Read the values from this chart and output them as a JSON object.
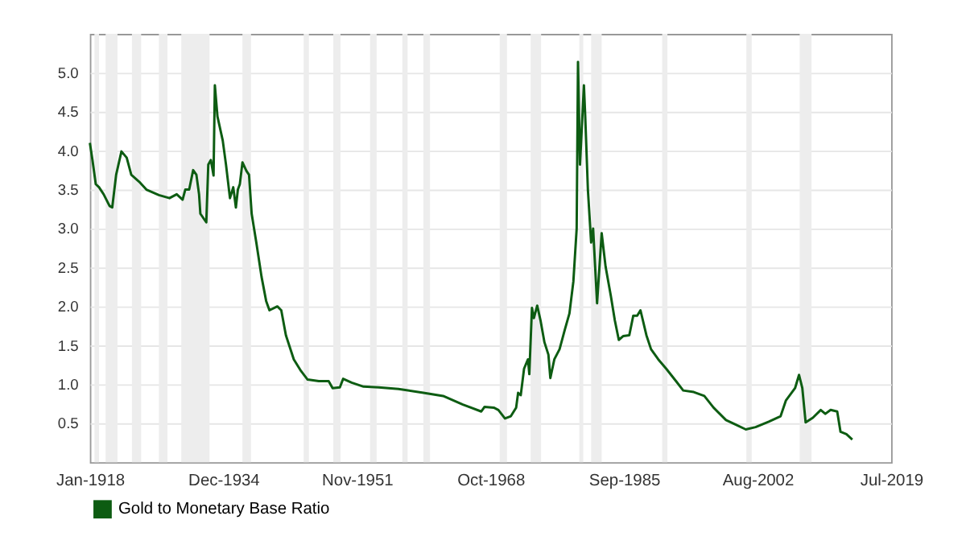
{
  "chart_data": {
    "type": "line",
    "series": [
      {
        "name": "Gold to Monetary Base Ratio",
        "color": "#0d5c12",
        "x": [
          "1918-01",
          "1918-05",
          "1918-10",
          "1919-03",
          "1919-10",
          "1920-07",
          "1920-11",
          "1921-05",
          "1922-01",
          "1922-09",
          "1923-04",
          "1924-04",
          "1925-03",
          "1926-10",
          "1928-02",
          "1929-01",
          "1929-10",
          "1930-02",
          "1930-08",
          "1931-02",
          "1931-07",
          "1931-11",
          "1932-01",
          "1932-10",
          "1933-01",
          "1933-05",
          "1933-09",
          "1933-11",
          "1934-03",
          "1934-11",
          "1935-04",
          "1935-10",
          "1936-03",
          "1936-07",
          "1936-10",
          "1937-01",
          "1937-05",
          "1937-11",
          "1938-03",
          "1938-07",
          "1939-02",
          "1939-10",
          "1940-05",
          "1940-10",
          "1941-10",
          "1942-04",
          "1942-11",
          "1943-11",
          "1944-10",
          "1945-08",
          "1947-01",
          "1948-04",
          "1948-10",
          "1949-09",
          "1950-02",
          "1951-03",
          "1952-09",
          "1954-08",
          "1957-02",
          "1960-04",
          "1962-10",
          "1965-04",
          "1967-08",
          "1968-01",
          "1969-03",
          "1969-10",
          "1970-08",
          "1971-05",
          "1972-01",
          "1972-04",
          "1972-08",
          "1973-01",
          "1973-07",
          "1973-09",
          "1974-01",
          "1974-04",
          "1974-09",
          "1975-02",
          "1975-08",
          "1976-02",
          "1976-05",
          "1976-11",
          "1977-07",
          "1978-03",
          "1978-10",
          "1979-04",
          "1979-09",
          "1979-11",
          "1980-02",
          "1980-08",
          "1980-10",
          "1981-02",
          "1981-07",
          "1981-10",
          "1982-04",
          "1982-11",
          "1983-05",
          "1984-01",
          "1984-07",
          "1985-01",
          "1985-08",
          "1986-05",
          "1986-11",
          "1987-05",
          "1987-10",
          "1988-07",
          "1989-02",
          "1990-01",
          "1991-01",
          "1992-04",
          "1993-03",
          "1994-07",
          "1995-11",
          "1997-01",
          "1998-08",
          "1999-11",
          "2001-02",
          "2002-05",
          "2004-01",
          "2005-07",
          "2006-03",
          "2007-05",
          "2007-11",
          "2008-04",
          "2008-09",
          "2009-08",
          "2010-08",
          "2011-03",
          "2011-11",
          "2012-09",
          "2013-02",
          "2013-11",
          "2014-08"
        ],
        "values": [
          4.1,
          3.88,
          3.57,
          3.53,
          3.44,
          3.29,
          3.27,
          3.69,
          3.99,
          3.91,
          3.69,
          3.6,
          3.5,
          3.43,
          3.39,
          3.44,
          3.37,
          3.5,
          3.5,
          3.75,
          3.69,
          3.44,
          3.19,
          3.08,
          3.82,
          3.88,
          3.68,
          4.84,
          4.44,
          4.13,
          3.82,
          3.39,
          3.53,
          3.27,
          3.5,
          3.57,
          3.85,
          3.74,
          3.69,
          3.19,
          2.82,
          2.38,
          2.07,
          1.95,
          2.0,
          1.95,
          1.63,
          1.32,
          1.17,
          1.06,
          1.04,
          1.04,
          0.95,
          0.96,
          1.07,
          1.02,
          0.97,
          0.96,
          0.94,
          0.89,
          0.85,
          0.74,
          0.65,
          0.71,
          0.7,
          0.67,
          0.56,
          0.59,
          0.7,
          0.89,
          0.86,
          1.2,
          1.32,
          1.13,
          1.98,
          1.85,
          2.01,
          1.82,
          1.54,
          1.38,
          1.08,
          1.32,
          1.45,
          1.7,
          1.91,
          2.32,
          3.0,
          5.14,
          3.82,
          4.84,
          4.44,
          3.5,
          2.82,
          3.0,
          2.04,
          2.94,
          2.51,
          2.13,
          1.82,
          1.57,
          1.62,
          1.63,
          1.88,
          1.88,
          1.95,
          1.63,
          1.45,
          1.32,
          1.2,
          1.04,
          0.92,
          0.9,
          0.85,
          0.7,
          0.54,
          0.48,
          0.42,
          0.45,
          0.52,
          0.59,
          0.79,
          0.95,
          1.12,
          0.95,
          0.51,
          0.57,
          0.67,
          0.62,
          0.67,
          0.65,
          0.39,
          0.36,
          0.29
        ]
      }
    ],
    "xlim": [
      "1918-01",
      "2019-07"
    ],
    "xticks": [
      {
        "value": "1918-01",
        "label": "Jan-1918"
      },
      {
        "value": "1934-12",
        "label": "Dec-1934"
      },
      {
        "value": "1951-11",
        "label": "Nov-1951"
      },
      {
        "value": "1968-10",
        "label": "Oct-1968"
      },
      {
        "value": "1985-09",
        "label": "Sep-1985"
      },
      {
        "value": "2002-08",
        "label": "Aug-2002"
      },
      {
        "value": "2019-07",
        "label": "Jul-2019"
      }
    ],
    "ylim": [
      0,
      5.5
    ],
    "yticks": [
      {
        "value": 0.5,
        "label": "0.5"
      },
      {
        "value": 1,
        "label": "1.0"
      },
      {
        "value": 1.5,
        "label": "1.5"
      },
      {
        "value": 2,
        "label": "2.0"
      },
      {
        "value": 2.5,
        "label": "2.5"
      },
      {
        "value": 3,
        "label": "3.0"
      },
      {
        "value": 3.5,
        "label": "3.5"
      },
      {
        "value": 4,
        "label": "4.0"
      },
      {
        "value": 4.5,
        "label": "4.5"
      },
      {
        "value": 5,
        "label": "5.0"
      }
    ],
    "bands": [
      {
        "axis": "x",
        "from": "1918-08",
        "to": "1919-03",
        "color": "#ededed"
      },
      {
        "axis": "x",
        "from": "1920-01",
        "to": "1921-07",
        "color": "#ededed"
      },
      {
        "axis": "x",
        "from": "1923-05",
        "to": "1924-07",
        "color": "#ededed"
      },
      {
        "axis": "x",
        "from": "1926-10",
        "to": "1927-11",
        "color": "#ededed"
      },
      {
        "axis": "x",
        "from": "1929-08",
        "to": "1933-03",
        "color": "#ededed"
      },
      {
        "axis": "x",
        "from": "1937-05",
        "to": "1938-06",
        "color": "#ededed"
      },
      {
        "axis": "x",
        "from": "1945-02",
        "to": "1945-10",
        "color": "#ededed"
      },
      {
        "axis": "x",
        "from": "1948-11",
        "to": "1949-10",
        "color": "#ededed"
      },
      {
        "axis": "x",
        "from": "1953-07",
        "to": "1954-05",
        "color": "#ededed"
      },
      {
        "axis": "x",
        "from": "1957-08",
        "to": "1958-04",
        "color": "#ededed"
      },
      {
        "axis": "x",
        "from": "1960-04",
        "to": "1961-02",
        "color": "#ededed"
      },
      {
        "axis": "x",
        "from": "1969-12",
        "to": "1970-11",
        "color": "#ededed"
      },
      {
        "axis": "x",
        "from": "1973-11",
        "to": "1975-03",
        "color": "#ededed"
      },
      {
        "axis": "x",
        "from": "1980-01",
        "to": "1980-07",
        "color": "#ededed"
      },
      {
        "axis": "x",
        "from": "1981-07",
        "to": "1982-11",
        "color": "#ededed"
      },
      {
        "axis": "x",
        "from": "1990-07",
        "to": "1991-03",
        "color": "#ededed"
      },
      {
        "axis": "x",
        "from": "2001-03",
        "to": "2001-11",
        "color": "#ededed"
      },
      {
        "axis": "x",
        "from": "2007-12",
        "to": "2009-06",
        "color": "#ededed"
      }
    ],
    "grid": "y",
    "legend": "bottom",
    "marker": "none",
    "line_style": "solid"
  }
}
